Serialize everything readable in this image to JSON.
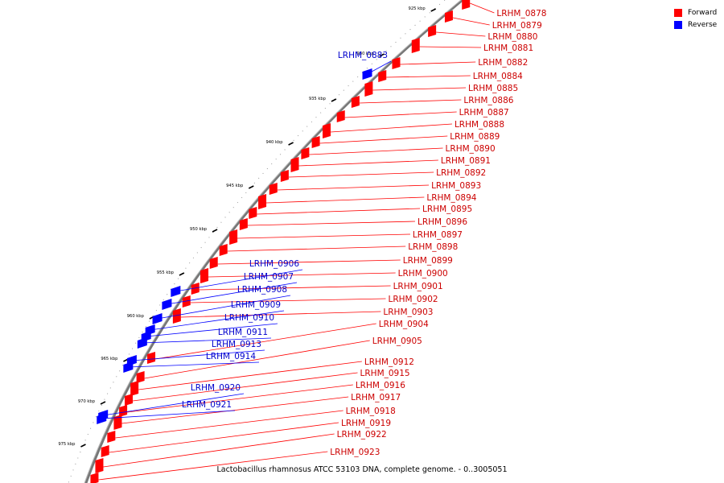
{
  "legend": [
    {
      "label": "Forward",
      "color": "#ff0000"
    },
    {
      "label": "Reverse",
      "color": "#0000ff"
    }
  ],
  "caption": "Lactobacillus rhamnosus ATCC 53103 DNA, complete genome. - 0..3005051",
  "scale_ticks": [
    "925 kbp",
    "930 kbp",
    "935 kbp",
    "940 kbp",
    "945 kbp",
    "950 kbp",
    "955 kbp",
    "960 kbp",
    "965 kbp",
    "970 kbp",
    "975 kbp"
  ],
  "colors": {
    "forward": "#ff0000",
    "reverse": "#0000ff",
    "forward_label": "#cc0000",
    "reverse_label": "#0000cc",
    "backbone": "#888888"
  },
  "forward_genes": [
    "LRHM_0878",
    "LRHM_0879",
    "LRHM_0880",
    "LRHM_0881",
    "LRHM_0882",
    "LRHM_0884",
    "LRHM_0885",
    "LRHM_0886",
    "LRHM_0887",
    "LRHM_0888",
    "LRHM_0889",
    "LRHM_0890",
    "LRHM_0891",
    "LRHM_0892",
    "LRHM_0893",
    "LRHM_0894",
    "LRHM_0895",
    "LRHM_0896",
    "LRHM_0897",
    "LRHM_0898",
    "LRHM_0899",
    "LRHM_0900",
    "LRHM_0901",
    "LRHM_0902",
    "LRHM_0903",
    "LRHM_0904",
    "LRHM_0905",
    "LRHM_0912",
    "LRHM_0915",
    "LRHM_0916",
    "LRHM_0917",
    "LRHM_0918",
    "LRHM_0919",
    "LRHM_0922",
    "LRHM_0923"
  ],
  "reverse_genes": [
    "LRHM_0883",
    "LRHM_0906",
    "LRHM_0907",
    "LRHM_0908",
    "LRHM_0909",
    "LRHM_0910",
    "LRHM_0911",
    "LRHM_0913",
    "LRHM_0914",
    "LRHM_0920",
    "LRHM_0921"
  ]
}
